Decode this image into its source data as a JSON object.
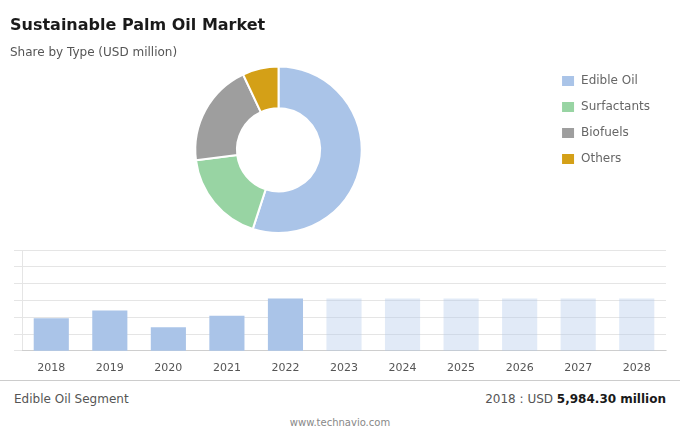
{
  "chart_data": [
    {
      "type": "doughnut",
      "title": "Sustainable Palm Oil Market",
      "subtitle": "Share by Type (USD million)",
      "categories": [
        "Edible Oil",
        "Surfactants",
        "Biofuels",
        "Others"
      ],
      "values": [
        55,
        18,
        20,
        7
      ],
      "colors": [
        "#aac4e8",
        "#98d4a3",
        "#9e9e9e",
        "#d4a017"
      ],
      "legend": "right"
    },
    {
      "type": "bar",
      "categories": [
        "2018",
        "2019",
        "2020",
        "2021",
        "2022",
        "2023",
        "2024",
        "2025",
        "2026",
        "2027",
        "2028"
      ],
      "values": [
        5984,
        6100,
        5850,
        6020,
        6280,
        6280,
        6280,
        6280,
        6280,
        6280,
        6280
      ],
      "colors": [
        "#aac4e8",
        "#aac4e8",
        "#aac4e8",
        "#aac4e8",
        "#aac4e8",
        "#aac4e859",
        "#aac4e859",
        "#aac4e859",
        "#aac4e859",
        "#aac4e859",
        "#aac4e859"
      ],
      "ylim": [
        5500,
        7000
      ],
      "yticks": [
        5500,
        5750,
        6000,
        6250,
        6500,
        6750,
        7000
      ],
      "grid": true,
      "tick_labels": "x",
      "annotations": [
        "Edible Oil Segment",
        "2018 : USD ",
        "5,984.30 million",
        "www.technavio.com"
      ]
    }
  ]
}
